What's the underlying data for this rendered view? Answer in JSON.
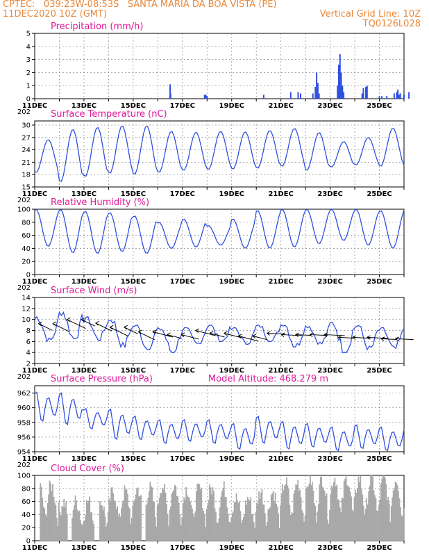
{
  "header": {
    "line1": "CPTEC:   039:23W-08:53S   SANTA MARIA DA BOA VISTA (PE)",
    "line2_left": "11DEC2020 10Z (GMT)",
    "line2_right": "Vertical Grid Line: 10Z",
    "line3_right": "TQ0126L028"
  },
  "colors": {
    "header": "#e8873a",
    "title": "#e0189a",
    "series": "#2f4fe0",
    "cloud": "#a8a8a8",
    "grid": "#888888"
  },
  "x_axis": {
    "labels": [
      "11DEC",
      "13DEC",
      "15DEC",
      "17DEC",
      "19DEC",
      "21DEC",
      "23DEC",
      "25DEC"
    ],
    "sub_label": "202"
  },
  "chart_data": [
    {
      "id": "precip",
      "type": "bar",
      "title": "Precipitation (mm/h)",
      "ylim": [
        0,
        5
      ],
      "yticks": [
        0,
        1,
        2,
        3,
        4,
        5
      ],
      "x_unit": "days since 11DEC2020 10Z",
      "x": [
        5.5,
        5.52,
        6.9,
        6.95,
        7.0,
        9.3,
        10.4,
        10.7,
        10.8,
        11.3,
        11.4,
        11.45,
        11.5,
        11.55,
        12.3,
        12.35,
        12.4,
        12.45,
        12.5,
        12.55,
        13.3,
        13.35,
        13.45,
        13.5,
        14.0,
        14.1,
        14.3,
        14.6,
        14.7,
        14.75,
        14.8,
        14.85,
        15.0,
        15.2
      ],
      "values": [
        1.1,
        0.4,
        0.3,
        0.3,
        0.2,
        0.3,
        0.5,
        0.5,
        0.4,
        0.4,
        0.9,
        2.0,
        1.2,
        0.4,
        1.0,
        2.6,
        3.4,
        2.0,
        1.0,
        0.5,
        0.4,
        0.8,
        0.9,
        1.0,
        0.2,
        0.2,
        0.2,
        0.4,
        0.5,
        0.7,
        0.3,
        0.4,
        0.3,
        0.5
      ]
    },
    {
      "id": "temp",
      "type": "line",
      "title": "Surface Temperature (nC)",
      "ylim": [
        15,
        31
      ],
      "yticks": [
        15,
        18,
        21,
        24,
        27,
        30
      ],
      "daily_min": [
        18.5,
        16.2,
        17.5,
        18.3,
        18.0,
        18.5,
        19.0,
        19.2,
        19.3,
        19.5,
        20.0,
        19.0,
        19.8,
        20.3,
        20.0,
        20.0
      ],
      "daily_max": [
        26.5,
        29.0,
        29.5,
        29.8,
        29.8,
        28.5,
        28.3,
        28.5,
        28.4,
        28.7,
        29.2,
        28.2,
        26.0,
        27.0,
        29.3,
        29.5
      ]
    },
    {
      "id": "rh",
      "type": "line",
      "title": "Relative Humidity (%)",
      "ylim": [
        0,
        100
      ],
      "yticks": [
        0,
        20,
        40,
        60,
        80,
        100
      ],
      "daily_min": [
        43,
        33,
        32,
        35,
        32,
        40,
        42,
        45,
        40,
        40,
        42,
        47,
        52,
        45,
        40,
        45
      ],
      "daily_max": [
        100,
        100,
        97,
        95,
        90,
        80,
        85,
        75,
        85,
        98,
        100,
        100,
        100,
        100,
        98,
        100
      ]
    },
    {
      "id": "wind",
      "type": "line",
      "title": "Surface Wind (m/s)",
      "ylim": [
        2,
        14
      ],
      "yticks": [
        2,
        4,
        6,
        8,
        10,
        12,
        14
      ],
      "daily_min": [
        6.0,
        6.5,
        6.2,
        5.0,
        4.5,
        4.0,
        5.5,
        6.0,
        5.5,
        6.0,
        5.0,
        5.5,
        4.0,
        4.5,
        4.5,
        5.0
      ],
      "daily_max": [
        10.5,
        11.5,
        10.5,
        10.2,
        9.0,
        8.5,
        8.5,
        9.0,
        8.5,
        9.0,
        9.5,
        9.0,
        9.5,
        9.0,
        8.5,
        8.8
      ]
    },
    {
      "id": "press",
      "type": "line",
      "title": "Surface Pressure (hPa)",
      "annotation": "Model Altitude: 468.279 m",
      "ylim": [
        954,
        963
      ],
      "yticks": [
        954,
        956,
        958,
        960,
        962
      ],
      "daily_min": [
        958.0,
        957.5,
        957.0,
        955.5,
        955.5,
        955.0,
        955.3,
        955.0,
        954.2,
        955.0,
        954.2,
        954.5,
        954.0,
        954.3,
        954.0,
        954.5
      ],
      "daily_max": [
        962.3,
        962.2,
        960.0,
        960.0,
        959.0,
        958.5,
        958.5,
        958.5,
        958.0,
        959.0,
        958.3,
        958.0,
        957.5,
        957.8,
        957.5,
        957.3
      ]
    },
    {
      "id": "cloud",
      "type": "bar",
      "title": "Cloud Cover (%)",
      "ylim": [
        0,
        100
      ],
      "yticks": [
        0,
        20,
        40,
        60,
        80,
        100
      ],
      "daily_level": [
        85,
        60,
        60,
        75,
        80,
        85,
        80,
        80,
        65,
        75,
        90,
        95,
        97,
        95,
        95,
        95
      ]
    }
  ]
}
